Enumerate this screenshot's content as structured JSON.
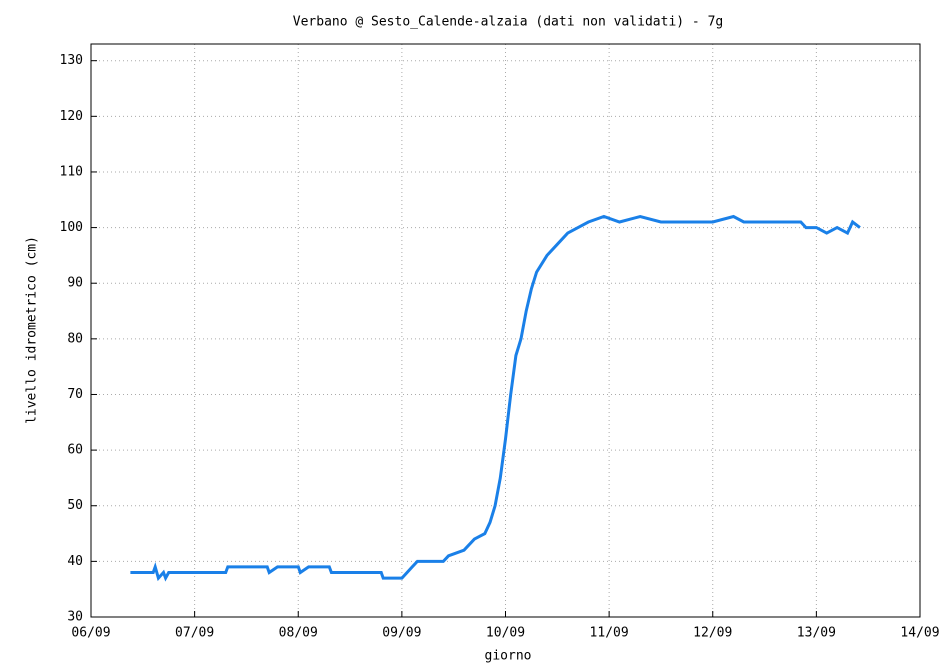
{
  "chart_data": {
    "type": "line",
    "title": "Verbano @ Sesto_Calende-alzaia (dati non validati) - 7g",
    "x_label": "giorno",
    "y_label": "livello idrometrico (cm)",
    "color": "#1a80e8",
    "grid": true,
    "x": [
      6.38,
      6.6,
      6.62,
      6.65,
      6.7,
      6.72,
      6.75,
      7.3,
      7.32,
      7.7,
      7.72,
      7.8,
      8.0,
      8.02,
      8.1,
      8.3,
      8.32,
      8.8,
      8.82,
      9.0,
      9.05,
      9.1,
      9.15,
      9.4,
      9.45,
      9.6,
      9.7,
      9.8,
      9.85,
      9.9,
      9.95,
      10.0,
      10.05,
      10.1,
      10.15,
      10.2,
      10.25,
      10.3,
      10.4,
      10.5,
      10.6,
      10.7,
      10.8,
      10.95,
      11.1,
      11.3,
      11.5,
      11.7,
      12.0,
      12.2,
      12.3,
      12.85,
      12.9,
      13.0,
      13.1,
      13.2,
      13.3,
      13.35,
      13.42
    ],
    "values": [
      38,
      38,
      39,
      37,
      38,
      37,
      38,
      38,
      39,
      39,
      38,
      39,
      39,
      38,
      39,
      39,
      38,
      38,
      37,
      37,
      38,
      39,
      40,
      40,
      41,
      42,
      44,
      45,
      47,
      50,
      55,
      62,
      70,
      77,
      80,
      85,
      89,
      92,
      95,
      97,
      99,
      100,
      101,
      102,
      101,
      102,
      101,
      101,
      101,
      102,
      101,
      101,
      100,
      100,
      99,
      100,
      99,
      101,
      100
    ],
    "xlim": [
      6,
      14
    ],
    "xticks": [
      {
        "value": 6,
        "label": "06/09"
      },
      {
        "value": 7,
        "label": "07/09"
      },
      {
        "value": 8,
        "label": "08/09"
      },
      {
        "value": 9,
        "label": "09/09"
      },
      {
        "value": 10,
        "label": "10/09"
      },
      {
        "value": 11,
        "label": "11/09"
      },
      {
        "value": 12,
        "label": "12/09"
      },
      {
        "value": 13,
        "label": "13/09"
      },
      {
        "value": 14,
        "label": "14/09"
      }
    ],
    "ylim": [
      30,
      133
    ],
    "yticks": [
      30,
      40,
      50,
      60,
      70,
      80,
      90,
      100,
      110,
      120,
      130
    ]
  }
}
